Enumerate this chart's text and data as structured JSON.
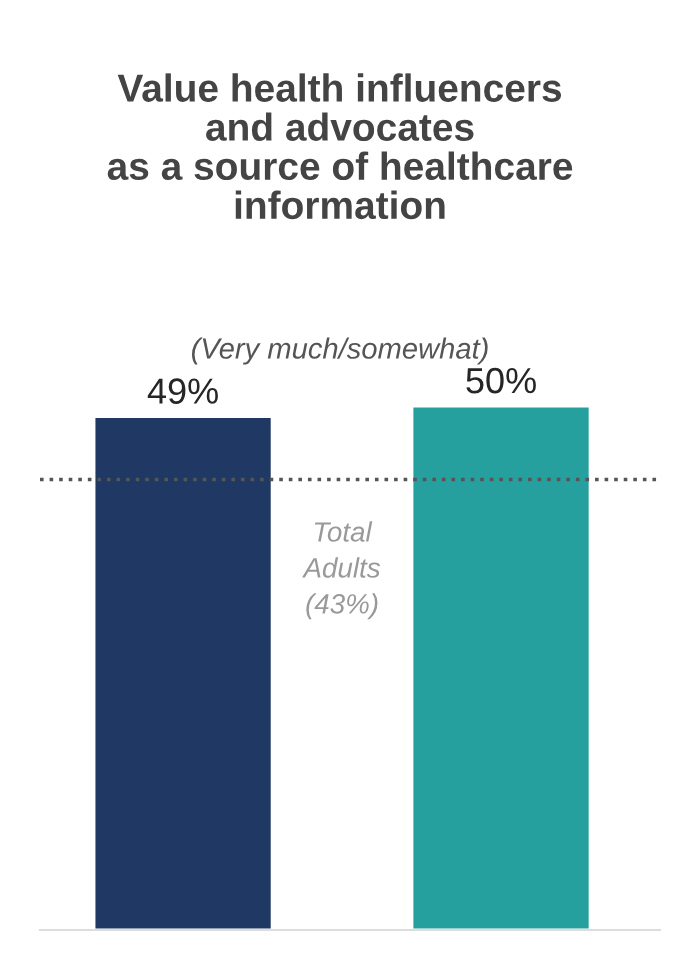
{
  "chart_data": {
    "type": "bar",
    "title": "Value health influencers\nand advocates\nas a source of healthcare\ninformation",
    "subtitle": "(Very much/somewhat)",
    "categories": [
      null,
      null
    ],
    "values": [
      49,
      50
    ],
    "colors": [
      "#1f3864",
      "#26a09f"
    ],
    "value_labels": [
      "49%",
      "50%"
    ],
    "ref_lines": [
      {
        "axis": "y",
        "value": 43,
        "label": "Total\nAdults\n(43%)",
        "color": "#555555",
        "line_style": "dotted"
      }
    ]
  }
}
